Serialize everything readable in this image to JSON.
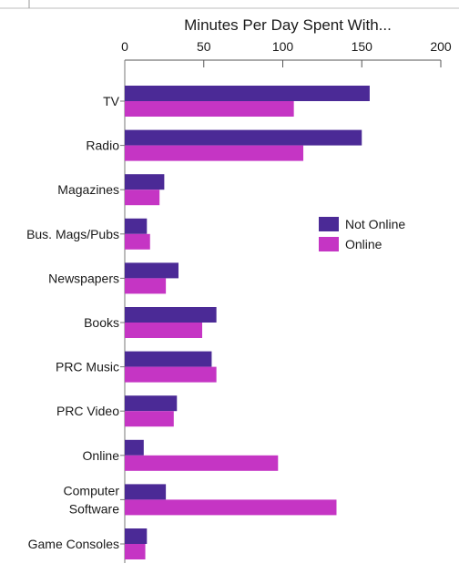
{
  "chart_data": {
    "type": "bar",
    "orientation": "horizontal",
    "title": "Minutes Per Day Spent With...",
    "xlabel": "",
    "ylabel": "",
    "xlim": [
      0,
      200
    ],
    "xticks": [
      "0",
      "50",
      "100",
      "150",
      "200"
    ],
    "tick_values": [
      0,
      50,
      100,
      150,
      200
    ],
    "categories": [
      [
        "TV"
      ],
      [
        "Radio"
      ],
      [
        "Magazines"
      ],
      [
        "Bus. Mags/Pubs"
      ],
      [
        "Newspapers"
      ],
      [
        "Books"
      ],
      [
        "PRC Music"
      ],
      [
        "PRC Video"
      ],
      [
        "Online"
      ],
      [
        "Computer",
        "Software"
      ],
      [
        "Game Consoles"
      ]
    ],
    "series": [
      {
        "name": "Not Online",
        "color": "#4b2a96",
        "values": [
          155,
          150,
          25,
          14,
          34,
          58,
          55,
          33,
          12,
          26,
          14
        ]
      },
      {
        "name": "Online",
        "color": "#c535c4",
        "values": [
          107,
          113,
          22,
          16,
          26,
          49,
          58,
          31,
          97,
          134,
          13
        ]
      }
    ],
    "legend_position": "right-middle",
    "grid": false
  }
}
